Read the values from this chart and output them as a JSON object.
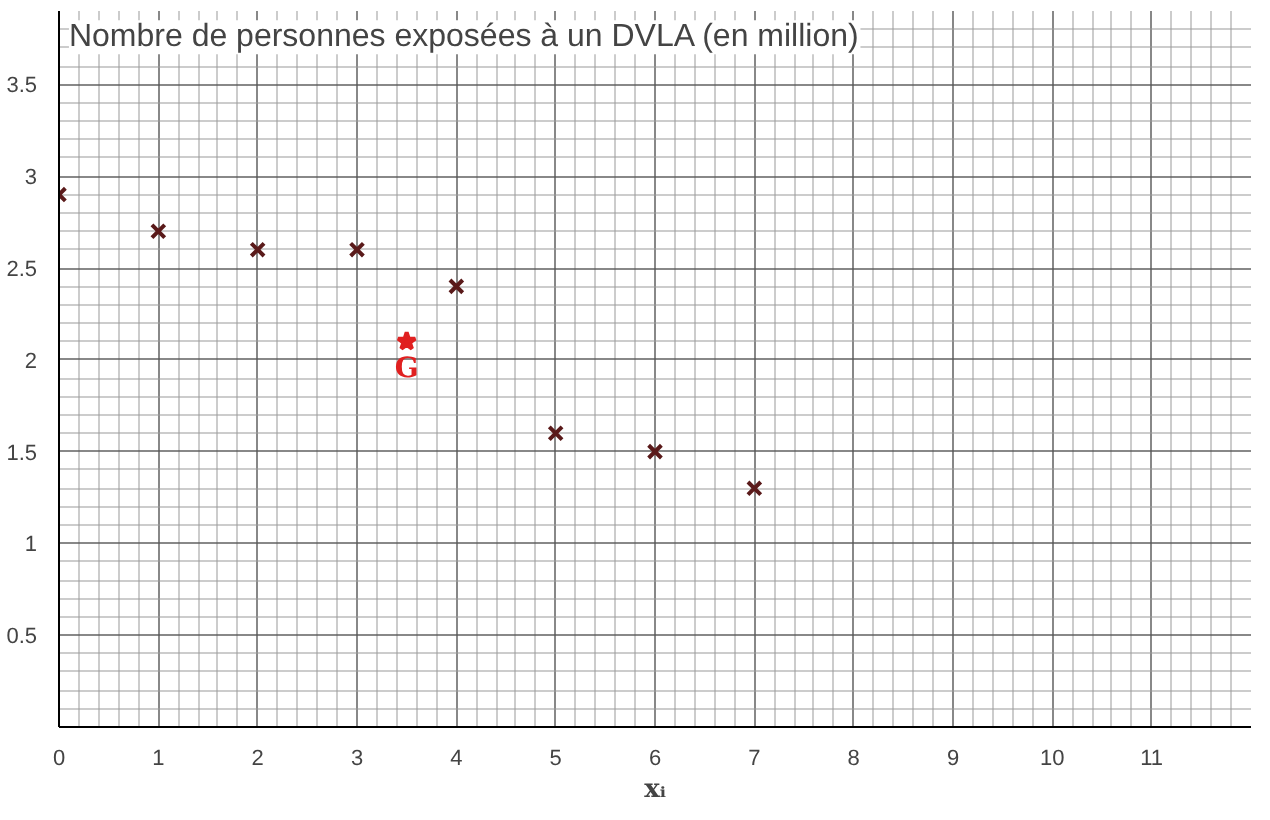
{
  "chart_data": {
    "type": "scatter",
    "title": "Nombre de personnes exposées à un DVLA (en million)",
    "xlabel": "xᵢ",
    "xlim": [
      0,
      12
    ],
    "ylim": [
      0,
      3.9
    ],
    "xticks": [
      0,
      1,
      2,
      3,
      4,
      5,
      6,
      7,
      8,
      9,
      10,
      11
    ],
    "yticks": [
      0.5,
      1,
      1.5,
      2,
      2.5,
      3,
      3.5
    ],
    "grid": true,
    "series": [
      {
        "color": "#5a1a1a",
        "marker": "cross",
        "x": [
          0,
          1,
          2,
          3,
          4,
          5,
          6,
          7
        ],
        "values": [
          2.9,
          2.7,
          2.6,
          2.6,
          2.4,
          1.6,
          1.5,
          1.3
        ]
      },
      {
        "name": "G",
        "color": "#e02020",
        "marker": "star",
        "x": [
          3.5
        ],
        "values": [
          2.1
        ]
      }
    ]
  }
}
